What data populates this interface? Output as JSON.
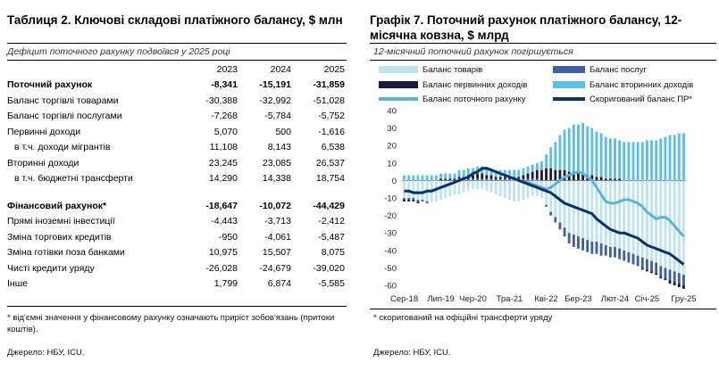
{
  "table": {
    "title": "Таблиця 2. Ключові складові платіжного балансу, $ млн",
    "subtitle": "Дефіцит поточного рахунку подвоївся у 2025 році",
    "years": [
      "2023",
      "2024",
      "2025"
    ],
    "rows": [
      {
        "label": "Поточний рахунок",
        "values": [
          "-8,341",
          "-15,191",
          "-31,859"
        ],
        "bold": true
      },
      {
        "label": "Баланс торгівлі товарами",
        "values": [
          "-30,388",
          "-32,992",
          "-51,028"
        ]
      },
      {
        "label": "Баланс торгівлі послугами",
        "values": [
          "-7,268",
          "-5,784",
          "-5,752"
        ]
      },
      {
        "label": "Первинні доходи",
        "values": [
          "5,070",
          "500",
          "-1,616"
        ]
      },
      {
        "label": "в т.ч. доходи мігрантів",
        "values": [
          "11,108",
          "8,143",
          "6,538"
        ],
        "indent": true
      },
      {
        "label": "Вторинні доходи",
        "values": [
          "23,245",
          "23,085",
          "26,537"
        ]
      },
      {
        "label": "в т.ч. бюджетні трансферти",
        "values": [
          "14,290",
          "14,338",
          "18,754"
        ],
        "indent": true
      },
      {
        "label": "Фінансовий рахунок*",
        "values": [
          "-18,647",
          "-10,072",
          "-44,429"
        ],
        "bold": true
      },
      {
        "label": "Прямі іноземні інвестиції",
        "values": [
          "-4,443",
          "-3,713",
          "-2,412"
        ]
      },
      {
        "label": "Зміна торгових кредитів",
        "values": [
          "-950",
          "-4,061",
          "-5,487"
        ]
      },
      {
        "label": "Зміна готівки поза банками",
        "values": [
          "10,975",
          "15,507",
          "8,075"
        ]
      },
      {
        "label": "Чисті кредити уряду",
        "values": [
          "-26,028",
          "-24,679",
          "-39,020"
        ]
      },
      {
        "label": "Інше",
        "values": [
          "1,799",
          "6,874",
          "-5,585"
        ]
      }
    ],
    "footnote": "* від'ємні значення у фінансовому рахунку означають приріст зобов'язань (притоки коштів).",
    "source": "Джерело: НБУ, ICU."
  },
  "chart": {
    "title": "Графік 7. Поточний рахунок платіжного балансу, 12-місячна ковзна, $ млрд",
    "subtitle": "12-місячний поточний рахунок погіршується",
    "footnote": "* скоригований на офіційні трансферти уряду",
    "source": "Джерело: НБУ, ICU."
  },
  "chart_data": {
    "type": "bar+line",
    "title": "Графік 7. Поточний рахунок платіжного балансу, 12-місячна ковзна, $ млрд",
    "ylim": [
      -60,
      40
    ],
    "yticks": [
      40,
      30,
      20,
      10,
      0,
      -10,
      -20,
      -30,
      -40,
      -50,
      -60
    ],
    "xtick_labels": [
      "Сер-18",
      "Лип-19",
      "Чер-20",
      "Тра-21",
      "Кві-22",
      "Бер-23",
      "Лют-24",
      "Січ-25",
      "Гру-25"
    ],
    "series": [
      {
        "name": "Баланс товарів",
        "kind": "bar",
        "color": "#bfe3f0",
        "values": [
          -10,
          -10,
          -10,
          -11,
          -11,
          -12,
          -12,
          -12,
          -11,
          -10,
          -9,
          -8,
          -8,
          -7,
          -6,
          -5,
          -5,
          -5,
          -6,
          -7,
          -8,
          -9,
          -10,
          -11,
          -12,
          -12,
          -11,
          -10,
          -9,
          -9,
          -10,
          -14,
          -18,
          -21,
          -24,
          -27,
          -30,
          -31,
          -32,
          -33,
          -34,
          -35,
          -35,
          -36,
          -37,
          -38,
          -38,
          -39,
          -40,
          -41,
          -42,
          -43,
          -44,
          -45,
          -46,
          -47,
          -49,
          -50,
          -51,
          -52,
          -53,
          -54
        ]
      },
      {
        "name": "Баланс послуг",
        "kind": "bar",
        "color": "#3f5fa3",
        "values": [
          -1,
          -1,
          -1,
          -1,
          -1,
          -1,
          0,
          0,
          0,
          0,
          0,
          0,
          1,
          1,
          1,
          1,
          1,
          1,
          1,
          1,
          1,
          1,
          1,
          1,
          1,
          1,
          1,
          1,
          1,
          1,
          0,
          -1,
          -2,
          -3,
          -4,
          -5,
          -6,
          -7,
          -7,
          -7,
          -7,
          -7,
          -7,
          -7,
          -6,
          -6,
          -6,
          -6,
          -6,
          -6,
          -6,
          -6,
          -6,
          -6,
          -6,
          -6,
          -6,
          -6,
          -6,
          -6,
          -6,
          -6
        ]
      },
      {
        "name": "Баланс первинних доходів",
        "kind": "bar",
        "color": "#1a1a3a",
        "values": [
          -1,
          -1,
          -1,
          -1,
          0,
          0,
          0,
          0,
          1,
          1,
          1,
          1,
          1,
          1,
          2,
          2,
          3,
          3,
          2,
          2,
          1,
          1,
          1,
          1,
          1,
          1,
          2,
          3,
          4,
          5,
          6,
          7,
          7,
          6,
          6,
          6,
          5,
          5,
          4,
          4,
          3,
          3,
          2,
          2,
          1,
          1,
          1,
          1,
          0,
          0,
          0,
          0,
          -1,
          -1,
          -1,
          -1,
          -1,
          -1,
          -2,
          -2,
          -2,
          -2
        ]
      },
      {
        "name": "Баланс вторинних доходів",
        "kind": "bar",
        "color": "#5bbfe5",
        "values": [
          3,
          3,
          3,
          3,
          3,
          3,
          3,
          3,
          3,
          3,
          3,
          3,
          4,
          4,
          4,
          4,
          4,
          4,
          4,
          4,
          4,
          4,
          4,
          4,
          4,
          4,
          4,
          4,
          4,
          4,
          5,
          8,
          12,
          16,
          20,
          23,
          25,
          27,
          28,
          29,
          28,
          27,
          26,
          25,
          24,
          23,
          23,
          22,
          22,
          22,
          22,
          22,
          22,
          23,
          23,
          23,
          24,
          25,
          26,
          26,
          27,
          27
        ]
      },
      {
        "name": "Баланс поточного рахунку",
        "kind": "line",
        "color": "#5bb4d2",
        "values": [
          -6,
          -6,
          -7,
          -7,
          -7,
          -6,
          -6,
          -5,
          -4,
          -3,
          -2,
          -1,
          0,
          1,
          2,
          4,
          5,
          7,
          7,
          6,
          5,
          4,
          3,
          2,
          1,
          0,
          -1,
          -1,
          -2,
          -3,
          -4,
          -5,
          -4,
          -2,
          0,
          2,
          3,
          4,
          5,
          4,
          2,
          0,
          -4,
          -8,
          -12,
          -13,
          -13,
          -12,
          -11,
          -11,
          -12,
          -13,
          -15,
          -18,
          -20,
          -22,
          -21,
          -21,
          -23,
          -26,
          -29,
          -32
        ]
      },
      {
        "name": "Скоригований баланс ПР*",
        "kind": "line",
        "color": "#10306a",
        "values": [
          -6,
          -6,
          -7,
          -7,
          -7,
          -6,
          -6,
          -5,
          -4,
          -3,
          -2,
          -1,
          0,
          1,
          2,
          4,
          5,
          7,
          7,
          6,
          5,
          4,
          3,
          2,
          1,
          0,
          -1,
          -2,
          -3,
          -4,
          -5,
          -6,
          -7,
          -9,
          -11,
          -13,
          -14,
          -15,
          -16,
          -17,
          -18,
          -19,
          -22,
          -24,
          -26,
          -28,
          -29,
          -30,
          -30,
          -31,
          -32,
          -33,
          -35,
          -37,
          -38,
          -39,
          -40,
          -41,
          -42,
          -44,
          -46,
          -48
        ]
      }
    ]
  }
}
